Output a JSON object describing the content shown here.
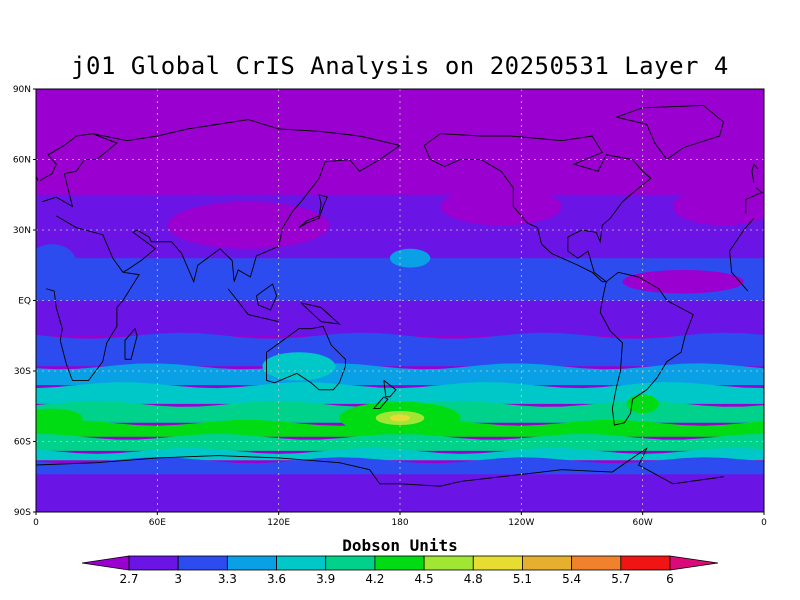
{
  "title": "j01 Global CrIS Analysis on 20250531 Layer 4",
  "colorbar_title": "Dobson Units",
  "lat_labels": [
    "90N",
    "60N",
    "30N",
    "EQ",
    "30S",
    "60S",
    "90S"
  ],
  "lon_labels": [
    "0",
    "60E",
    "120E",
    "180",
    "120W",
    "60W",
    "0"
  ],
  "colorbar": {
    "labels": [
      "2.7",
      "3",
      "3.3",
      "3.6",
      "3.9",
      "4.2",
      "4.5",
      "4.8",
      "5.1",
      "5.4",
      "5.7",
      "6"
    ],
    "colors": [
      "#9a00d0",
      "#6a14e6",
      "#2c4cf0",
      "#09a0e6",
      "#00c8c8",
      "#00d28c",
      "#00dc14",
      "#a0e632",
      "#e6dc32",
      "#e6af2d",
      "#f0822d",
      "#f01414",
      "#dc0a78"
    ]
  },
  "zonal_bands": [
    {
      "lat": 90,
      "color": "#9a00d0"
    },
    {
      "lat": 68,
      "color": "#9a00d0"
    },
    {
      "lat": 45,
      "color": "#6a14e6"
    },
    {
      "lat": 28,
      "color": "#6a14e6"
    },
    {
      "lat": 18,
      "color": "#2c4cf0"
    },
    {
      "lat": 0,
      "color": "#6a14e6"
    },
    {
      "lat": -15,
      "color": "#2c4cf0"
    },
    {
      "lat": -28,
      "color": "#09a0e6"
    },
    {
      "lat": -36,
      "color": "#00c8c8"
    },
    {
      "lat": -44,
      "color": "#00d28c"
    },
    {
      "lat": -52,
      "color": "#00dc14"
    },
    {
      "lat": -58,
      "color": "#00d28c"
    },
    {
      "lat": -64,
      "color": "#00c8c8"
    },
    {
      "lat": -68,
      "color": "#2c4cf0"
    },
    {
      "lat": -74,
      "color": "#6a14e6"
    },
    {
      "lat": -90,
      "color": "#9a00d0"
    }
  ],
  "blobs": [
    {
      "lon": 105,
      "lat": 32,
      "rlon": 40,
      "rlat": 10,
      "color": "#9a00d0"
    },
    {
      "lon": 8,
      "lat": 16,
      "rlon": 12,
      "rlat": 8,
      "color": "#2c4cf0"
    },
    {
      "lon": 185,
      "lat": 18,
      "rlon": 10,
      "rlat": 4,
      "color": "#09a0e6"
    },
    {
      "lon": 180,
      "lat": -50,
      "rlon": 30,
      "rlat": 7,
      "color": "#00dc14"
    },
    {
      "lon": 180,
      "lat": -50,
      "rlon": 12,
      "rlat": 3,
      "color": "#a0e632"
    },
    {
      "lon": 180,
      "lat": -50,
      "rlon": 5,
      "rlat": 1.5,
      "color": "#e6dc32"
    },
    {
      "lon": 300,
      "lat": -44,
      "rlon": 8,
      "rlat": 4,
      "color": "#00dc14"
    },
    {
      "lon": 130,
      "lat": -28,
      "rlon": 18,
      "rlat": 6,
      "color": "#00c8c8"
    },
    {
      "lon": 8,
      "lat": -50,
      "rlon": 15,
      "rlat": 4,
      "color": "#00dc14"
    },
    {
      "lon": 320,
      "lat": 8,
      "rlon": 30,
      "rlat": 5,
      "color": "#9a00d0"
    },
    {
      "lon": 230,
      "lat": 40,
      "rlon": 30,
      "rlat": 8,
      "color": "#9a00d0"
    },
    {
      "lon": 340,
      "lat": 40,
      "rlon": 25,
      "rlat": 8,
      "color": "#9a00d0"
    }
  ]
}
